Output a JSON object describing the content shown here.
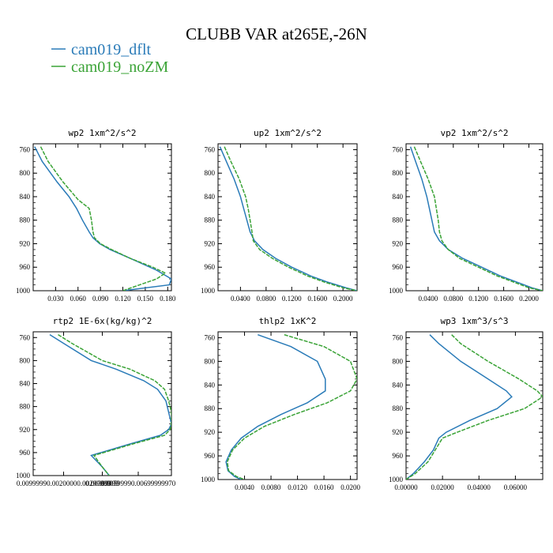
{
  "figure": {
    "title": "CLUBB VAR at265E,-26N"
  },
  "legend": [
    {
      "name": "cam019_dflt",
      "color": "#2a7bb8"
    },
    {
      "name": "cam019_noZM",
      "color": "#3aa336"
    }
  ],
  "chart_data": [
    {
      "type": "line",
      "title": "wp2  1xm^2/s^2",
      "ylim": [
        1000,
        750
      ],
      "y_ticks": [
        "760",
        "800",
        "840",
        "880",
        "920",
        "960",
        "1000"
      ],
      "y_tick_values": [
        760,
        800,
        840,
        880,
        920,
        960,
        1000
      ],
      "xlim": [
        0.0,
        0.185
      ],
      "x_ticks": [
        "0.030",
        "0.060",
        "0.090",
        "0.120",
        "0.150",
        "0.180"
      ],
      "x_tick_values": [
        0.03,
        0.06,
        0.09,
        0.12,
        0.15,
        0.18
      ],
      "series": [
        {
          "name": "cam019_dflt",
          "x": [
            0.002,
            0.012,
            0.032,
            0.048,
            0.058,
            0.066,
            0.075,
            0.08,
            0.089,
            0.103,
            0.13,
            0.165,
            0.185,
            0.182,
            0.12
          ],
          "y": [
            755,
            780,
            815,
            840,
            860,
            880,
            900,
            910,
            920,
            930,
            945,
            965,
            980,
            990,
            1000
          ]
        },
        {
          "name": "cam019_noZM",
          "x": [
            0.01,
            0.02,
            0.04,
            0.06,
            0.075,
            0.078,
            0.08,
            0.082,
            0.09,
            0.105,
            0.13,
            0.16,
            0.177,
            0.165,
            0.12
          ],
          "y": [
            755,
            780,
            815,
            845,
            860,
            880,
            900,
            910,
            920,
            930,
            945,
            960,
            970,
            980,
            1000
          ]
        }
      ]
    },
    {
      "type": "line",
      "title": "up2  1xm^2/s^2",
      "ylim": [
        1000,
        750
      ],
      "y_ticks": [
        "760",
        "800",
        "840",
        "880",
        "920",
        "960",
        "1000"
      ],
      "y_tick_values": [
        760,
        800,
        840,
        880,
        920,
        960,
        1000
      ],
      "xlim": [
        0.005,
        0.222
      ],
      "x_ticks": [
        "0.0400",
        "0.0800",
        "0.1200",
        "0.1600",
        "0.2000"
      ],
      "x_tick_values": [
        0.04,
        0.08,
        0.12,
        0.16,
        0.2
      ],
      "series": [
        {
          "name": "cam019_dflt",
          "x": [
            0.008,
            0.018,
            0.03,
            0.04,
            0.045,
            0.05,
            0.055,
            0.062,
            0.075,
            0.095,
            0.12,
            0.15,
            0.175,
            0.205,
            0.222
          ],
          "y": [
            755,
            780,
            810,
            840,
            860,
            880,
            900,
            915,
            930,
            945,
            960,
            975,
            985,
            995,
            1000
          ]
        },
        {
          "name": "cam019_noZM",
          "x": [
            0.015,
            0.025,
            0.038,
            0.048,
            0.052,
            0.055,
            0.058,
            0.06,
            0.07,
            0.09,
            0.115,
            0.145,
            0.17,
            0.2,
            0.222
          ],
          "y": [
            755,
            780,
            810,
            840,
            860,
            880,
            900,
            915,
            930,
            945,
            960,
            975,
            985,
            995,
            1000
          ]
        }
      ]
    },
    {
      "type": "line",
      "title": "vp2  1xm^2/s^2",
      "ylim": [
        1000,
        750
      ],
      "y_ticks": [
        "760",
        "800",
        "840",
        "880",
        "920",
        "960",
        "1000"
      ],
      "y_tick_values": [
        760,
        800,
        840,
        880,
        920,
        960,
        1000
      ],
      "xlim": [
        0.005,
        0.222
      ],
      "x_ticks": [
        "0.0400",
        "0.0800",
        "0.1200",
        "0.1600",
        "0.2000"
      ],
      "x_tick_values": [
        0.04,
        0.08,
        0.12,
        0.16,
        0.2
      ],
      "series": [
        {
          "name": "cam019_dflt",
          "x": [
            0.012,
            0.02,
            0.03,
            0.038,
            0.042,
            0.046,
            0.05,
            0.058,
            0.072,
            0.095,
            0.125,
            0.155,
            0.18,
            0.205,
            0.222
          ],
          "y": [
            755,
            780,
            810,
            840,
            860,
            880,
            900,
            915,
            930,
            945,
            960,
            975,
            985,
            995,
            1000
          ]
        },
        {
          "name": "cam019_noZM",
          "x": [
            0.018,
            0.028,
            0.04,
            0.05,
            0.053,
            0.056,
            0.058,
            0.062,
            0.072,
            0.09,
            0.12,
            0.15,
            0.175,
            0.2,
            0.222
          ],
          "y": [
            755,
            780,
            810,
            840,
            860,
            880,
            900,
            915,
            930,
            945,
            960,
            975,
            985,
            995,
            1000
          ]
        }
      ]
    },
    {
      "type": "line",
      "title": "rtp2  1E-6x(kg/kg)^2",
      "ylim": [
        1000,
        750
      ],
      "y_ticks": [
        "760",
        "800",
        "840",
        "880",
        "920",
        "960",
        "1000"
      ],
      "y_tick_values": [
        760,
        800,
        840,
        880,
        920,
        960,
        1000
      ],
      "xlim": [
        0.0,
        1.0
      ],
      "x_ticks": [
        "0.00999990.00200000.00299999",
        "0.00399999",
        "0.00599990.00699999970"
      ],
      "x_tick_positions": [
        0.22,
        0.5,
        0.76
      ],
      "series": [
        {
          "name": "cam019_dflt",
          "x": [
            0.12,
            0.22,
            0.42,
            0.6,
            0.8,
            0.9,
            0.96,
            0.98,
            1.0,
            0.98,
            0.92,
            0.7,
            0.42,
            0.5,
            0.55
          ],
          "y": [
            755,
            770,
            800,
            815,
            835,
            850,
            870,
            890,
            910,
            920,
            930,
            945,
            965,
            985,
            1000
          ]
        },
        {
          "name": "cam019_noZM",
          "x": [
            0.18,
            0.28,
            0.5,
            0.7,
            0.88,
            0.95,
            0.98,
            1.0,
            1.0,
            0.99,
            0.95,
            0.72,
            0.44,
            0.5,
            0.55
          ],
          "y": [
            755,
            770,
            800,
            815,
            835,
            850,
            870,
            890,
            910,
            920,
            930,
            945,
            965,
            985,
            1000
          ]
        }
      ]
    },
    {
      "type": "line",
      "title": "thlp2  1xK^2",
      "ylim": [
        1000,
        750
      ],
      "y_ticks": [
        "760",
        "800",
        "840",
        "880",
        "920",
        "960",
        "1000"
      ],
      "y_tick_values": [
        760,
        800,
        840,
        880,
        920,
        960,
        1000
      ],
      "xlim": [
        0.0,
        0.021
      ],
      "x_ticks": [
        "0.0040",
        "0.0080",
        "0.0120",
        "0.0160",
        "0.0200"
      ],
      "x_tick_values": [
        0.004,
        0.008,
        0.012,
        0.016,
        0.02
      ],
      "series": [
        {
          "name": "cam019_dflt",
          "x": [
            0.006,
            0.011,
            0.015,
            0.0162,
            0.0162,
            0.0135,
            0.0095,
            0.006,
            0.0035,
            0.002,
            0.0012,
            0.0015,
            0.0025,
            0.0035
          ],
          "y": [
            755,
            775,
            800,
            830,
            850,
            870,
            890,
            910,
            930,
            950,
            970,
            985,
            995,
            1000
          ]
        },
        {
          "name": "cam019_noZM",
          "x": [
            0.01,
            0.016,
            0.02,
            0.021,
            0.02,
            0.0165,
            0.0115,
            0.007,
            0.004,
            0.0022,
            0.0014,
            0.0016,
            0.0028,
            0.004
          ],
          "y": [
            755,
            775,
            800,
            830,
            850,
            870,
            890,
            910,
            930,
            950,
            970,
            985,
            995,
            1000
          ]
        }
      ]
    },
    {
      "type": "line",
      "title": "wp3  1xm^3/s^3",
      "ylim": [
        1000,
        750
      ],
      "y_ticks": [
        "760",
        "800",
        "840",
        "880",
        "920",
        "960",
        "1000"
      ],
      "y_tick_values": [
        760,
        800,
        840,
        880,
        920,
        960,
        1000
      ],
      "xlim": [
        0.0,
        0.075
      ],
      "x_ticks": [
        "0.00000",
        "0.02000",
        "0.04000",
        "0.06000"
      ],
      "x_tick_values": [
        0.0,
        0.02,
        0.04,
        0.06
      ],
      "series": [
        {
          "name": "cam019_dflt",
          "x": [
            0.013,
            0.018,
            0.03,
            0.045,
            0.055,
            0.058,
            0.05,
            0.035,
            0.022,
            0.018,
            0.015,
            0.01,
            0.004,
            0.0
          ],
          "y": [
            755,
            770,
            800,
            830,
            850,
            860,
            880,
            900,
            920,
            930,
            950,
            970,
            990,
            1000
          ]
        },
        {
          "name": "cam019_noZM",
          "x": [
            0.025,
            0.03,
            0.045,
            0.062,
            0.072,
            0.075,
            0.065,
            0.045,
            0.028,
            0.02,
            0.016,
            0.012,
            0.005,
            0.0
          ],
          "y": [
            755,
            770,
            800,
            830,
            850,
            860,
            880,
            900,
            920,
            930,
            950,
            970,
            990,
            1000
          ]
        }
      ]
    }
  ]
}
